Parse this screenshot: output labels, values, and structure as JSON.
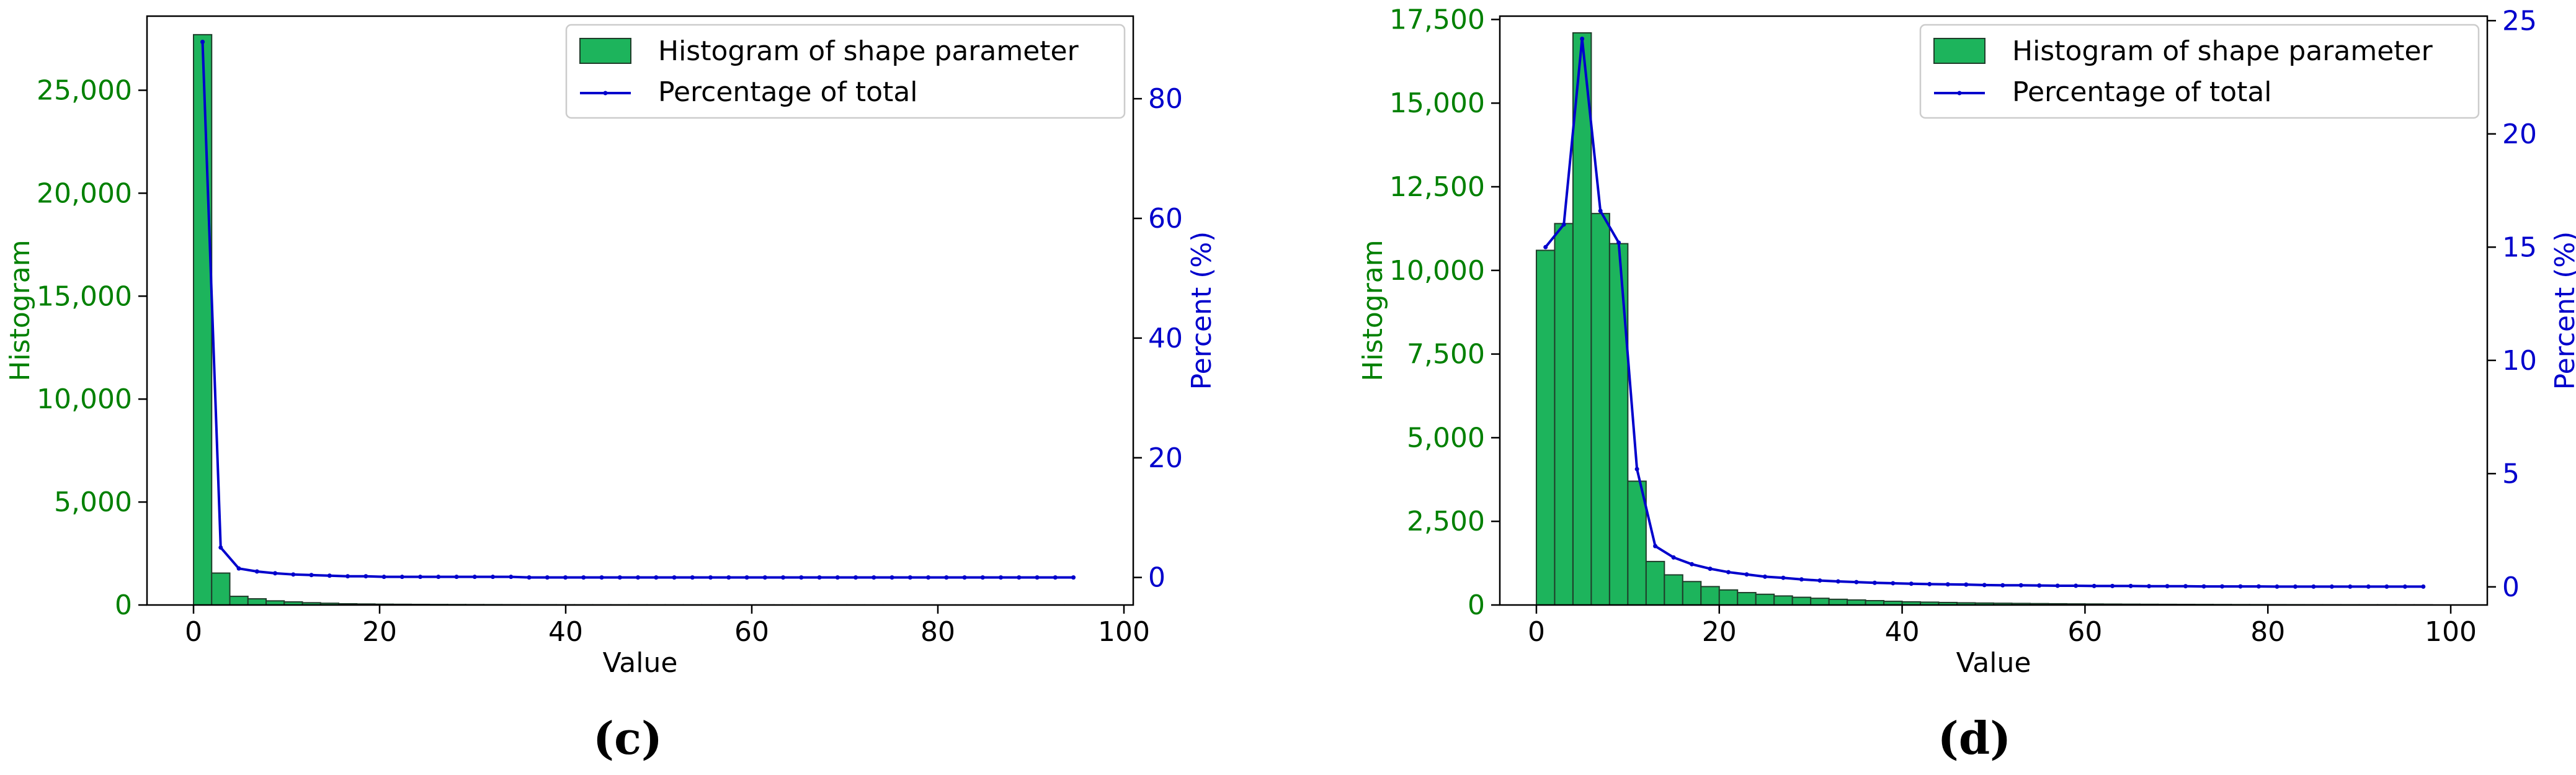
{
  "figure": {
    "captions": [
      "(c)",
      "(d)"
    ]
  },
  "colors": {
    "bar_fill": "#1db45c",
    "bar_edge": "#1f3d2a",
    "left_axis": "#008000",
    "right_axis": "#0000cc",
    "line": "#0000cc"
  },
  "chart_data": [
    {
      "type": "bar",
      "caption": "(c)",
      "xlabel": "Value",
      "ylabel": "Histogram",
      "ylabel_right": "Percent (%)",
      "xlim": [
        -5,
        101
      ],
      "ylim": [
        0,
        28600
      ],
      "ylim_right": [
        -4.6,
        93.8
      ],
      "xticks": [
        0,
        20,
        40,
        60,
        80,
        100
      ],
      "xtick_labels": [
        "0",
        "20",
        "40",
        "60",
        "80",
        "100"
      ],
      "yticks": [
        0,
        5000,
        10000,
        15000,
        20000,
        25000
      ],
      "ytick_labels": [
        "0",
        "5,000",
        "10,000",
        "15,000",
        "20,000",
        "25,000"
      ],
      "yticks_right": [
        0,
        20,
        40,
        60,
        80
      ],
      "ytick_labels_right": [
        "0",
        "20",
        "40",
        "60",
        "80"
      ],
      "legend": {
        "position": "top-right",
        "entries": [
          "Histogram of shape parameter",
          "Percentage of total"
        ]
      },
      "bar_width": 1.95,
      "bins": [
        0,
        1.95,
        3.9,
        5.85,
        7.8,
        9.75,
        11.7,
        13.65,
        15.6,
        17.55,
        19.5,
        21.45,
        23.4,
        25.35,
        27.3,
        29.25,
        31.2,
        33.15,
        35.1,
        37.05,
        39,
        40.95,
        42.9,
        44.85,
        46.8,
        48.75,
        50.7,
        52.65,
        54.6,
        56.55,
        58.5,
        60.45,
        62.4,
        64.35,
        66.3,
        68.25,
        70.2,
        72.15,
        74.1,
        76.05,
        78,
        79.95,
        81.9,
        83.85,
        85.8,
        87.75,
        89.7,
        91.65,
        93.6
      ],
      "values": [
        27700,
        1550,
        420,
        300,
        200,
        150,
        110,
        85,
        60,
        50,
        40,
        35,
        30,
        25,
        22,
        20,
        18,
        16,
        14,
        12,
        10,
        9,
        8,
        7,
        6,
        5,
        5,
        4,
        4,
        3,
        3,
        3,
        2,
        2,
        2,
        2,
        2,
        1,
        1,
        1,
        1,
        1,
        1,
        1,
        1,
        1,
        1,
        1,
        1
      ],
      "series": [
        {
          "name": "Percentage of total",
          "x": [
            0.97,
            2.92,
            4.87,
            6.82,
            8.77,
            10.72,
            12.67,
            14.62,
            16.57,
            18.52,
            20.47,
            22.42,
            24.37,
            26.32,
            28.27,
            30.22,
            32.17,
            34.12,
            36.07,
            38.02,
            39.97,
            41.92,
            43.87,
            45.82,
            47.77,
            49.72,
            51.67,
            53.62,
            55.57,
            57.52,
            59.47,
            61.42,
            63.37,
            65.32,
            67.27,
            69.22,
            71.17,
            73.12,
            75.07,
            77.02,
            78.97,
            80.92,
            82.87,
            84.82,
            86.77,
            88.72,
            90.67,
            92.62,
            94.57
          ],
          "values": [
            89.5,
            5.0,
            1.5,
            1.0,
            0.7,
            0.5,
            0.4,
            0.3,
            0.2,
            0.2,
            0.1,
            0.1,
            0.1,
            0.1,
            0.1,
            0.1,
            0.1,
            0.1,
            0.0,
            0.0,
            0.0,
            0.0,
            0.0,
            0.0,
            0.0,
            0.0,
            0.0,
            0.0,
            0.0,
            0.0,
            0.0,
            0.0,
            0.0,
            0.0,
            0.0,
            0.0,
            0.0,
            0.0,
            0.0,
            0.0,
            0.0,
            0.0,
            0.0,
            0.0,
            0.0,
            0.0,
            0.0,
            0.0,
            0.0
          ]
        }
      ]
    },
    {
      "type": "bar",
      "caption": "(d)",
      "xlabel": "Value",
      "ylabel": "Histogram",
      "ylabel_right": "Percent (%)",
      "xlim": [
        -4,
        104
      ],
      "ylim": [
        0,
        17600
      ],
      "ylim_right": [
        -0.8,
        25.2
      ],
      "xticks": [
        0,
        20,
        40,
        60,
        80,
        100
      ],
      "xtick_labels": [
        "0",
        "20",
        "40",
        "60",
        "80",
        "100"
      ],
      "yticks": [
        0,
        2500,
        5000,
        7500,
        10000,
        12500,
        15000,
        17500
      ],
      "ytick_labels": [
        "0",
        "2,500",
        "5,000",
        "7,500",
        "10,000",
        "12,500",
        "15,000",
        "17,500"
      ],
      "yticks_right": [
        0,
        5,
        10,
        15,
        20,
        25
      ],
      "ytick_labels_right": [
        "0",
        "5",
        "10",
        "15",
        "20",
        "25"
      ],
      "legend": {
        "position": "top-right",
        "entries": [
          "Histogram of shape parameter",
          "Percentage of total"
        ]
      },
      "bar_width": 2.0,
      "bins": [
        0,
        2,
        4,
        6,
        8,
        10,
        12,
        14,
        16,
        18,
        20,
        22,
        24,
        26,
        28,
        30,
        32,
        34,
        36,
        38,
        40,
        42,
        44,
        46,
        48,
        50,
        52,
        54,
        56,
        58,
        60,
        62,
        64,
        66,
        68,
        70,
        72,
        74,
        76,
        78,
        80,
        82,
        84,
        86,
        88,
        90,
        92,
        94,
        96
      ],
      "values": [
        10600,
        11400,
        17100,
        11700,
        10800,
        3700,
        1300,
        900,
        700,
        550,
        450,
        370,
        320,
        270,
        230,
        200,
        170,
        150,
        130,
        110,
        95,
        85,
        75,
        65,
        58,
        52,
        47,
        42,
        38,
        34,
        31,
        28,
        25,
        22,
        20,
        18,
        16,
        14,
        12,
        11,
        10,
        9,
        8,
        7,
        6,
        5,
        5,
        4,
        4
      ],
      "series": [
        {
          "name": "Percentage of total",
          "x": [
            1,
            3,
            5,
            7,
            9,
            11,
            13,
            15,
            17,
            19,
            21,
            23,
            25,
            27,
            29,
            31,
            33,
            35,
            37,
            39,
            41,
            43,
            45,
            47,
            49,
            51,
            53,
            55,
            57,
            59,
            61,
            63,
            65,
            67,
            69,
            71,
            73,
            75,
            77,
            79,
            81,
            83,
            85,
            87,
            89,
            91,
            93,
            95,
            97
          ],
          "values": [
            15.0,
            16.0,
            24.2,
            16.6,
            15.2,
            5.2,
            1.8,
            1.3,
            1.0,
            0.8,
            0.65,
            0.55,
            0.45,
            0.4,
            0.33,
            0.28,
            0.24,
            0.21,
            0.18,
            0.16,
            0.14,
            0.12,
            0.11,
            0.1,
            0.08,
            0.07,
            0.07,
            0.06,
            0.05,
            0.05,
            0.04,
            0.04,
            0.04,
            0.03,
            0.03,
            0.03,
            0.02,
            0.02,
            0.02,
            0.02,
            0.01,
            0.01,
            0.01,
            0.01,
            0.01,
            0.01,
            0.01,
            0.01,
            0.01
          ]
        }
      ]
    }
  ]
}
